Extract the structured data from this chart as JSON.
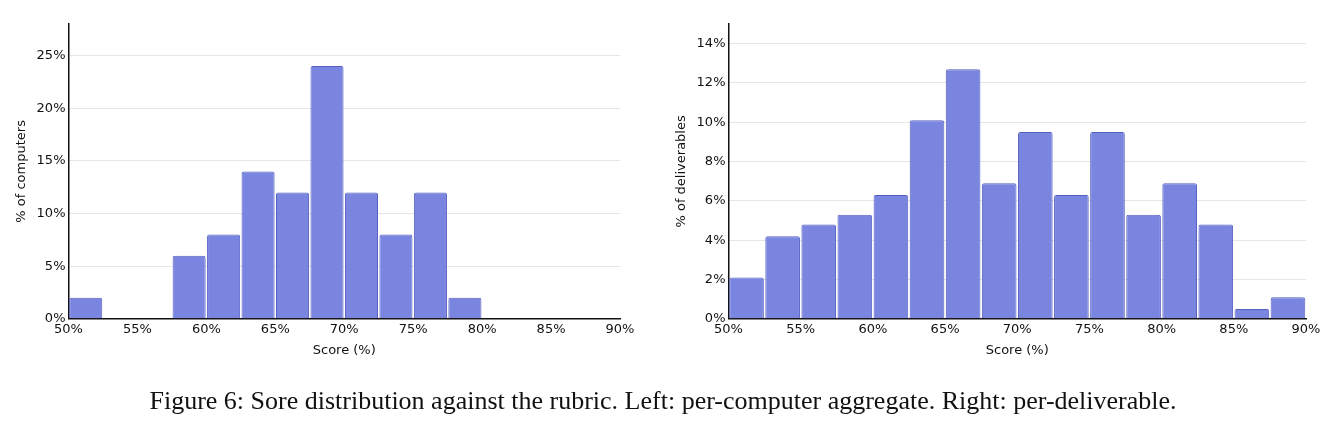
{
  "chart_data": [
    {
      "type": "histogram",
      "xlabel": "Score (%)",
      "ylabel": "% of computers",
      "bins": [
        50,
        52.5,
        55,
        57.5,
        60,
        62.5,
        65,
        67.5,
        70,
        72.5,
        75,
        77.5,
        80,
        82.5,
        85,
        87.5,
        90
      ],
      "values": [
        2,
        0,
        0,
        6,
        8,
        14,
        12,
        24,
        12,
        8,
        12,
        2,
        0,
        0,
        0,
        0
      ],
      "color": "#7a85e0",
      "xlim": [
        50,
        90
      ],
      "xticks": [
        {
          "value": 50,
          "label": "50%"
        },
        {
          "value": 55,
          "label": "55%"
        },
        {
          "value": 60,
          "label": "60%"
        },
        {
          "value": 65,
          "label": "65%"
        },
        {
          "value": 70,
          "label": "70%"
        },
        {
          "value": 75,
          "label": "75%"
        },
        {
          "value": 80,
          "label": "80%"
        },
        {
          "value": 85,
          "label": "85%"
        },
        {
          "value": 90,
          "label": "90%"
        }
      ],
      "ylim": [
        0,
        28
      ],
      "yticks": [
        {
          "value": 0,
          "label": "0%"
        },
        {
          "value": 5,
          "label": "5%"
        },
        {
          "value": 10,
          "label": "10%"
        },
        {
          "value": 15,
          "label": "15%"
        },
        {
          "value": 20,
          "label": "20%"
        },
        {
          "value": 25,
          "label": "25%"
        }
      ],
      "grid": "y",
      "legend": false,
      "annotations": [
        "Figure 6: Sore distribution against the rubric. Left: per-computer aggregate. Right: per-deliverable."
      ]
    },
    {
      "type": "histogram",
      "xlabel": "Score (%)",
      "ylabel": "% of deliverables",
      "bins": [
        50,
        52.5,
        55,
        57.5,
        60,
        62.5,
        65,
        67.5,
        70,
        72.5,
        75,
        77.5,
        80,
        82.5,
        85,
        87.5,
        90
      ],
      "values": [
        2.1,
        4.2,
        4.8,
        5.3,
        6.3,
        10.1,
        12.7,
        6.9,
        9.5,
        6.3,
        9.5,
        5.3,
        6.9,
        4.8,
        0.5,
        1.1
      ],
      "color": "#7a85e0",
      "xlim": [
        50,
        90
      ],
      "xticks": [
        {
          "value": 50,
          "label": "50%"
        },
        {
          "value": 55,
          "label": "55%"
        },
        {
          "value": 60,
          "label": "60%"
        },
        {
          "value": 65,
          "label": "65%"
        },
        {
          "value": 70,
          "label": "70%"
        },
        {
          "value": 75,
          "label": "75%"
        },
        {
          "value": 80,
          "label": "80%"
        },
        {
          "value": 85,
          "label": "85%"
        },
        {
          "value": 90,
          "label": "90%"
        }
      ],
      "ylim": [
        0,
        15
      ],
      "yticks": [
        {
          "value": 0,
          "label": "0%"
        },
        {
          "value": 2,
          "label": "2%"
        },
        {
          "value": 4,
          "label": "4%"
        },
        {
          "value": 6,
          "label": "6%"
        },
        {
          "value": 8,
          "label": "8%"
        },
        {
          "value": 10,
          "label": "10%"
        },
        {
          "value": 12,
          "label": "12%"
        },
        {
          "value": 14,
          "label": "14%"
        }
      ],
      "grid": "y",
      "legend": false
    }
  ]
}
